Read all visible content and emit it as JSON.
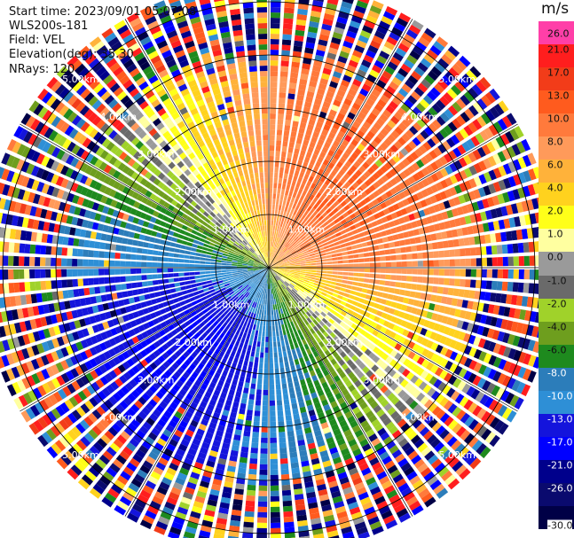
{
  "info": {
    "start_time": "Start time: 2023/09/01 05:07:08",
    "site": "WLS200s-181",
    "field": "Field: VEL",
    "elevation": "Elevation(deg): 35.30",
    "nrays": "NRays: 120"
  },
  "chart_data": {
    "type": "heatmap",
    "projection": "polar-ppi",
    "field": "VEL",
    "unit": "m/s",
    "nrays": 120,
    "range_rings_km": [
      1.0,
      2.0,
      3.0,
      4.0,
      5.0
    ],
    "ring_labels": [
      "1.00km",
      "2.00km",
      "3.00km",
      "4.00km",
      "5.00km"
    ],
    "max_range_km": 5.4,
    "colorbar": {
      "labels": [
        "26.0",
        "21.0",
        "17.0",
        "13.0",
        "10.0",
        "8.0",
        "6.0",
        "4.0",
        "2.0",
        "1.0",
        "0.0",
        "-1.0",
        "-2.0",
        "-4.0",
        "-6.0",
        "-8.0",
        "-10.0",
        "-13.0",
        "-17.0",
        "-21.0",
        "-26.0",
        "-30.0"
      ],
      "colors": [
        "#ff3fa8",
        "#ff1e1e",
        "#f23c19",
        "#ff5b1e",
        "#ff7a3c",
        "#ff9a5a",
        "#ffb23a",
        "#ffd21e",
        "#ffff19",
        "#ffffa0",
        "#9a9a9a",
        "#6a6a6a",
        "#a0d22a",
        "#6e9e1e",
        "#1e8a1e",
        "#2c7dba",
        "#2e8fd6",
        "#1414dc",
        "#0000ff",
        "#00008c",
        "#0a0a6e",
        "#000046"
      ]
    },
    "wind_pattern": {
      "description_free": true,
      "max_positive_bearing_deg": 45,
      "max_negative_bearing_deg": 200,
      "approx_peak_velocity": 13.0
    }
  }
}
